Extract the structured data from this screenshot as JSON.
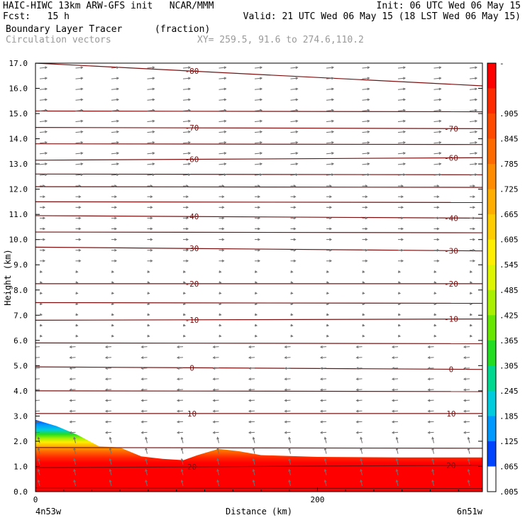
{
  "header": {
    "line1_left": "HAIC-HIWC 13km ARW-GFS init   NCAR/MMM",
    "line1_right": "Init: 06 UTC Wed 06 May 15",
    "line2_left": "Fcst:   15 h",
    "line2_right": "Valid: 21 UTC Wed 06 May 15 (18 LST Wed 06 May 15)",
    "line3_left": "Boundary Layer Tracer",
    "line3_unit": "(fraction)",
    "line4_left": "Circulation vectors",
    "line4_right": "XY= 259.5, 91.6 to 274.6,110.2"
  },
  "chart_data": {
    "type": "heatmap",
    "title": "Boundary Layer Tracer",
    "units": "fraction",
    "overlay": "Circulation vectors",
    "xlabel": "Distance (km)",
    "ylabel": "Height (km)",
    "xlim": [
      0,
      317
    ],
    "ylim": [
      0,
      17
    ],
    "x_ticks": [
      {
        "value": 0,
        "label": "0"
      },
      {
        "value": 200,
        "label": "200"
      }
    ],
    "x_end_labels": {
      "left": "4n53w",
      "right": "6n51w"
    },
    "y_ticks": [
      "0.0",
      "1.0",
      "2.0",
      "3.0",
      "4.0",
      "5.0",
      "6.0",
      "7.0",
      "8.0",
      "9.0",
      "10.0",
      "11.0",
      "12.0",
      "13.0",
      "14.0",
      "15.0",
      "16.0",
      "17.0"
    ],
    "grid": false,
    "colorbar": {
      "labels": [
        "-",
        ".905",
        ".845",
        ".785",
        ".725",
        ".665",
        ".605",
        ".545",
        ".485",
        ".425",
        ".365",
        ".305",
        ".245",
        ".185",
        ".125",
        ".065",
        ".005"
      ],
      "colors": [
        "#ff0000",
        "#ff2a00",
        "#ff4a00",
        "#ff6a00",
        "#ff8c00",
        "#ffae00",
        "#ffcc00",
        "#ffee00",
        "#ddf500",
        "#a8f000",
        "#66e600",
        "#22dd22",
        "#00d890",
        "#00ccdd",
        "#0099ff",
        "#0044ff",
        "#ffffff"
      ]
    },
    "tracer_top_km": [
      {
        "x": 0,
        "z": 2.85
      },
      {
        "x": 15,
        "z": 2.6
      },
      {
        "x": 30,
        "z": 2.25
      },
      {
        "x": 45,
        "z": 1.8
      },
      {
        "x": 60,
        "z": 1.75
      },
      {
        "x": 75,
        "z": 1.4
      },
      {
        "x": 90,
        "z": 1.3
      },
      {
        "x": 105,
        "z": 1.25
      },
      {
        "x": 115,
        "z": 1.45
      },
      {
        "x": 130,
        "z": 1.7
      },
      {
        "x": 145,
        "z": 1.6
      },
      {
        "x": 160,
        "z": 1.45
      },
      {
        "x": 200,
        "z": 1.38
      },
      {
        "x": 260,
        "z": 1.36
      },
      {
        "x": 317,
        "z": 1.36
      }
    ],
    "isotherms_c": [
      {
        "label": "-80",
        "z_left": 17.0,
        "z_right": 16.1
      },
      {
        "label": "-70",
        "z_left": 14.45,
        "z_right": 14.4
      },
      {
        "label": "-60",
        "z_left": 13.15,
        "z_right": 13.25
      },
      {
        "label": "-40",
        "z_left": 10.95,
        "z_right": 10.85
      },
      {
        "label": "-30",
        "z_left": 9.7,
        "z_right": 9.55
      },
      {
        "label": "-20",
        "z_left": 8.25,
        "z_right": 8.25
      },
      {
        "label": "-10",
        "z_left": 6.8,
        "z_right": 6.85
      },
      {
        "label": "0",
        "z_left": 4.95,
        "z_right": 4.85
      },
      {
        "label": "10",
        "z_left": 3.1,
        "z_right": 3.1
      },
      {
        "label": "20",
        "z_left": 0.95,
        "z_right": 1.05
      }
    ],
    "extra_isotherm_z": [
      15.1,
      13.8,
      12.6,
      12.1,
      11.5,
      10.3,
      7.5,
      5.9,
      4.0,
      1.75,
      0.15
    ]
  }
}
